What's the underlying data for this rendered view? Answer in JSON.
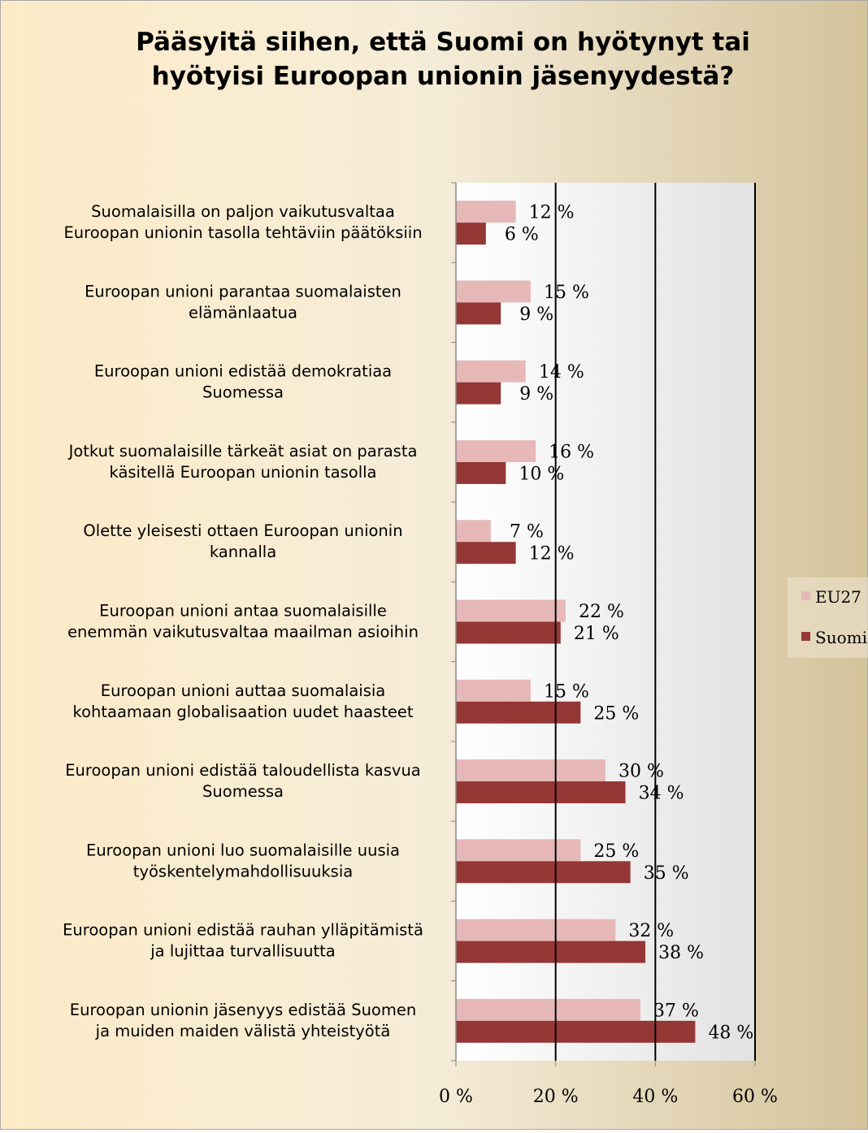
{
  "chart_data": {
    "type": "bar",
    "orientation": "horizontal",
    "title": "Pääsyitä siihen, että Suomi on hyötynyt tai hyötyisi Euroopan unionin jäsenyydestä?",
    "title_lines": [
      "Pääsyitä siihen, että Suomi on hyötynyt tai",
      "hyötyisi Euroopan unionin jäsenyydestä?"
    ],
    "categories": [
      [
        "Suomalaisilla on paljon vaikutusvaltaa",
        "Euroopan unionin tasolla tehtäviin päätöksiin"
      ],
      [
        "Euroopan unioni parantaa suomalaisten",
        "elämänlaatua"
      ],
      [
        "Euroopan unioni edistää demokratiaa",
        "Suomessa"
      ],
      [
        "Jotkut suomalaisille tärkeät asiat on parasta",
        "käsitellä Euroopan unionin tasolla"
      ],
      [
        "Olette yleisesti ottaen Euroopan unionin",
        "kannalla"
      ],
      [
        "Euroopan unioni antaa suomalaisille",
        "enemmän vaikutusvaltaa maailman asioihin"
      ],
      [
        "Euroopan unioni auttaa suomalaisia",
        "kohtaamaan globalisaation uudet haasteet"
      ],
      [
        "Euroopan unioni edistää taloudellista kasvua",
        "Suomessa"
      ],
      [
        "Euroopan unioni luo suomalaisille uusia",
        "työskentelymahdollisuuksia"
      ],
      [
        "Euroopan unioni edistää rauhan ylläpitämistä",
        "ja lujittaa turvallisuutta"
      ],
      [
        "Euroopan unionin jäsenyys edistää Suomen",
        "ja muiden maiden välistä yhteistyötä"
      ]
    ],
    "series": [
      {
        "name": "EU27",
        "color": "#e6b9b8",
        "values": [
          12,
          15,
          14,
          16,
          7,
          22,
          15,
          30,
          25,
          32,
          37
        ]
      },
      {
        "name": "Suomi",
        "color": "#953735",
        "values": [
          6,
          9,
          9,
          10,
          12,
          21,
          25,
          34,
          35,
          38,
          48
        ]
      }
    ],
    "value_suffix": " %",
    "xlim": [
      0,
      60
    ],
    "xticks": [
      0,
      20,
      40,
      60
    ],
    "xtick_labels": [
      "0 %",
      "20 %",
      "40 %",
      "60 %"
    ],
    "grid": true,
    "legend_position": "right"
  }
}
